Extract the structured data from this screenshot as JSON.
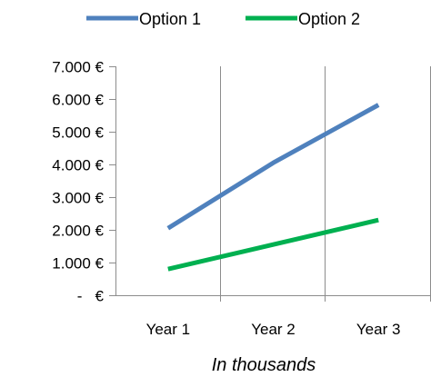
{
  "chart_data": {
    "type": "line",
    "categories": [
      "Year 1",
      "Year 2",
      "Year 3"
    ],
    "series": [
      {
        "name": "Option 1",
        "values": [
          2050,
          4050,
          5820
        ],
        "color": "#4f81bd"
      },
      {
        "name": "Option 2",
        "values": [
          800,
          1550,
          2300
        ],
        "color": "#00b050"
      }
    ],
    "y_tick_values": [
      0,
      1000,
      2000,
      3000,
      4000,
      5000,
      6000,
      7000
    ],
    "y_tick_labels": [
      "-   €",
      "1.000 €",
      "2.000 €",
      "3.000 €",
      "4.000 €",
      "5.000 €",
      "6.000 €",
      "7.000 €"
    ],
    "ylim": [
      0,
      7000
    ],
    "xlabel": "In thousands",
    "ylabel": "",
    "title": "",
    "grid": "vertical",
    "legend_position": "top"
  },
  "colors": {
    "grid": "#8c8c8c",
    "axis": "#8c8c8c"
  }
}
